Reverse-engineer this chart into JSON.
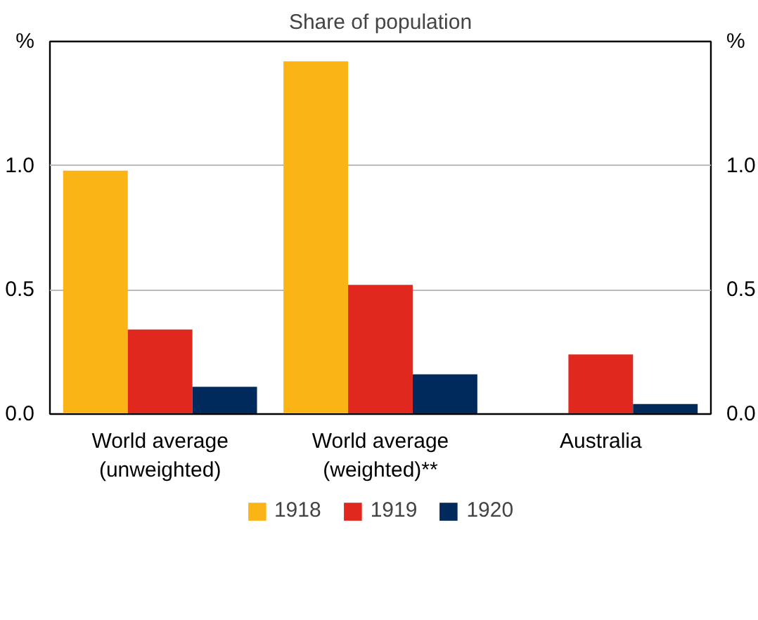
{
  "chart_data": {
    "type": "bar",
    "title": "Share of population",
    "ylabel": "%",
    "y2label": "%",
    "categories": [
      "World average\n(unweighted)",
      "World average\n(weighted)**",
      "Australia"
    ],
    "series": [
      {
        "name": "1918",
        "color": "#fbb416",
        "values": [
          0.98,
          1.42,
          0.0
        ]
      },
      {
        "name": "1919",
        "color": "#e0281f",
        "values": [
          0.34,
          0.52,
          0.24
        ]
      },
      {
        "name": "1920",
        "color": "#002a5c",
        "values": [
          0.11,
          0.16,
          0.04
        ]
      }
    ],
    "ylim": [
      0,
      1.5
    ],
    "yticks": [
      {
        "value": 0,
        "label": "0.0"
      },
      {
        "value": 0.5,
        "label": "0.5"
      },
      {
        "value": 1.0,
        "label": "1.0"
      }
    ],
    "y2lim": [
      0,
      1.5
    ],
    "y2ticks": [
      {
        "value": 0,
        "label": "0.0"
      },
      {
        "value": 0.5,
        "label": "0.5"
      },
      {
        "value": 1.0,
        "label": "1.0"
      }
    ],
    "grid": "y",
    "legend": "bottom"
  }
}
